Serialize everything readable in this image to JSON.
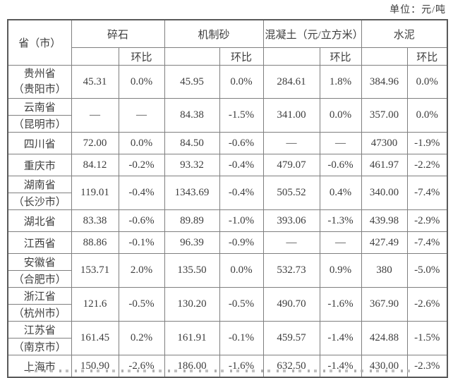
{
  "unit_label": "单位：元/吨",
  "table": {
    "header": {
      "province": "省（市）",
      "groups": [
        {
          "label": "碎石",
          "sub": [
            "",
            "环比"
          ]
        },
        {
          "label": "机制砂",
          "sub": [
            "",
            "环比"
          ]
        },
        {
          "label": "混凝土（元/立方米）",
          "sub": [
            "",
            "环比"
          ]
        },
        {
          "label": "水泥",
          "sub": [
            "",
            "环比"
          ]
        }
      ]
    },
    "rows": [
      {
        "province": "贵州省",
        "city": "（贵阳市）",
        "split": false,
        "values": [
          "45.31",
          "0.0%",
          "45.95",
          "0.0%",
          "284.61",
          "1.8%",
          "384.96",
          "0.0%"
        ]
      },
      {
        "province": "云南省",
        "city": "（昆明市）",
        "split": true,
        "values": [
          "—",
          "—",
          "84.38",
          "-1.5%",
          "341.00",
          "0.0%",
          "357.00",
          "0.0%"
        ]
      },
      {
        "province": "四川省",
        "city": "",
        "split": false,
        "values": [
          "72.00",
          "0.0%",
          "84.50",
          "-0.6%",
          "—",
          "—",
          "47300",
          "-1.9%"
        ]
      },
      {
        "province": "重庆市",
        "city": "",
        "split": false,
        "values": [
          "84.12",
          "-0.2%",
          "93.32",
          "-0.4%",
          "479.07",
          "-0.6%",
          "461.97",
          "-2.2%"
        ]
      },
      {
        "province": "湖南省",
        "city": "（长沙市）",
        "split": true,
        "values": [
          "119.01",
          "-0.4%",
          "1343.69",
          "-0.4%",
          "505.52",
          "0.4%",
          "340.00",
          "-7.4%"
        ]
      },
      {
        "province": "湖北省",
        "city": "",
        "split": false,
        "values": [
          "83.38",
          "-0.6%",
          "89.89",
          "-1.0%",
          "393.06",
          "-1.3%",
          "439.98",
          "-2.9%"
        ]
      },
      {
        "province": "江西省",
        "city": "",
        "split": false,
        "values": [
          "88.86",
          "-0.1%",
          "96.39",
          "-0.9%",
          "—",
          "—",
          "427.49",
          "-7.4%"
        ]
      },
      {
        "province": "安徽省",
        "city": "（合肥市）",
        "split": true,
        "values": [
          "153.71",
          "2.0%",
          "135.50",
          "0.0%",
          "532.73",
          "0.9%",
          "380",
          "-5.0%"
        ]
      },
      {
        "province": "浙江省",
        "city": "（杭州市）",
        "split": true,
        "values": [
          "121.6",
          "-0.5%",
          "130.20",
          "-0.5%",
          "490.70",
          "-1.6%",
          "367.90",
          "-2.6%"
        ]
      },
      {
        "province": "江苏省",
        "city": "（南京市）",
        "split": true,
        "values": [
          "161.45",
          "0.2%",
          "161.91",
          "-0.1%",
          "459.57",
          "-1.4%",
          "424.88",
          "-1.5%"
        ]
      },
      {
        "province": "上海市",
        "city": "",
        "split": false,
        "values": [
          "150.90",
          "-2.6%",
          "186.00",
          "-1.6%",
          "632.50",
          "-1.4%",
          "430.00",
          "-2.3%"
        ]
      }
    ]
  }
}
